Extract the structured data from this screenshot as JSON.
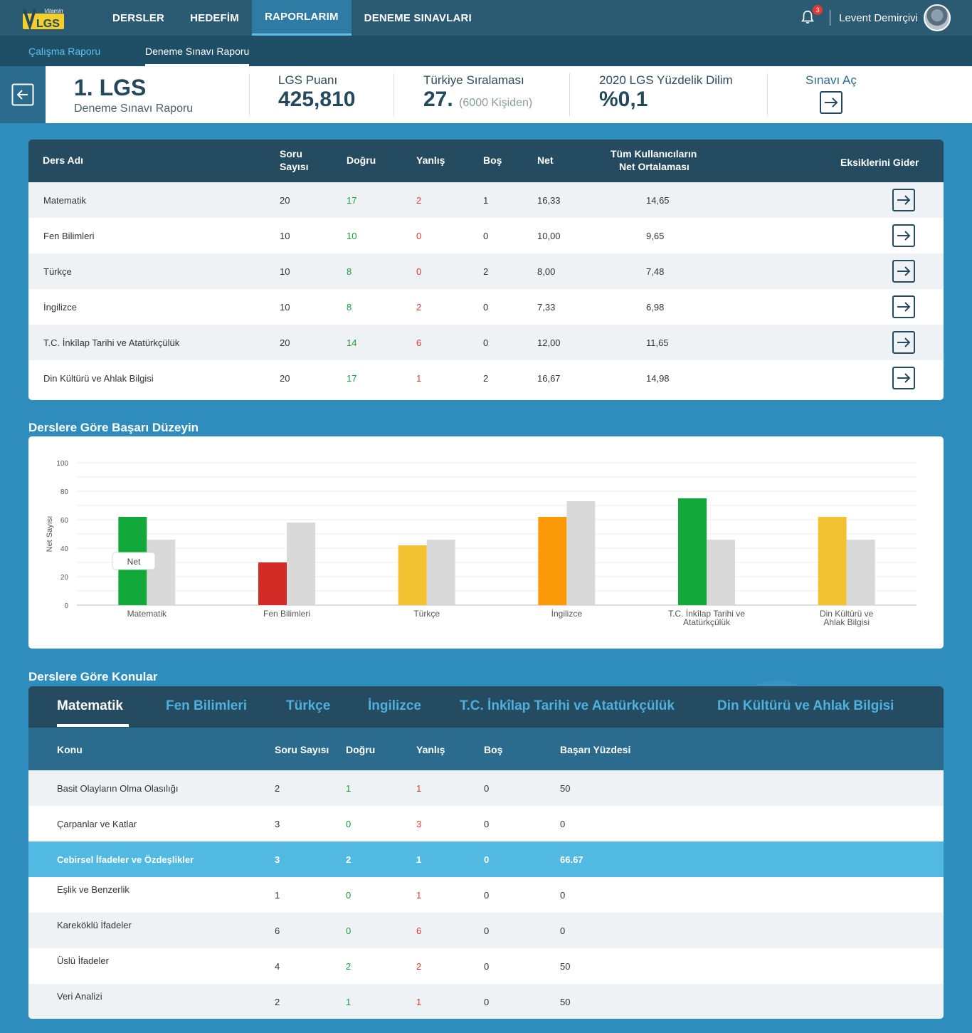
{
  "logo": {
    "top": "Vitamin",
    "main": "LGS"
  },
  "nav": {
    "items": [
      {
        "label": "DERSLER"
      },
      {
        "label": "HEDEFİM"
      },
      {
        "label": "RAPORLARIM"
      },
      {
        "label": "DENEME SINAVLARI"
      }
    ],
    "notifications": "3",
    "user_name": "Levent Demirçivi"
  },
  "subnav": {
    "inactive": "Çalışma Raporu",
    "active": "Deneme Sınavı Raporu"
  },
  "header": {
    "title": "1. LGS",
    "subtitle": "Deneme Sınavı Raporu",
    "score_label": "LGS Puanı",
    "score_value": "425,810",
    "rank_label": "Türkiye Sıralaması",
    "rank_value": "27.",
    "rank_note": "(6000 Kişiden)",
    "percentile_label": "2020 LGS Yüzdelik Dilim",
    "percentile_value": "%0,1",
    "open_exam_label": "Sınavı Aç"
  },
  "results_table": {
    "headers": {
      "subject": "Ders Adı",
      "question_count_1": "Soru",
      "question_count_2": "Sayısı",
      "correct": "Doğru",
      "wrong": "Yanlış",
      "empty": "Boş",
      "net": "Net",
      "average_1": "Tüm Kullanıcıların",
      "average_2": "Net Ortalaması",
      "fix": "Eksiklerini Gider"
    },
    "rows": [
      {
        "subject": "Matematik",
        "questions": "20",
        "correct": "17",
        "wrong": "2",
        "empty": "1",
        "net": "16,33",
        "avg": "14,65"
      },
      {
        "subject": "Fen Bilimleri",
        "questions": "10",
        "correct": "10",
        "wrong": "0",
        "empty": "0",
        "net": "10,00",
        "avg": "9,65"
      },
      {
        "subject": "Türkçe",
        "questions": "10",
        "correct": "8",
        "wrong": "0",
        "empty": "2",
        "net": "8,00",
        "avg": "7,48"
      },
      {
        "subject": "İngilizce",
        "questions": "10",
        "correct": "8",
        "wrong": "2",
        "empty": "0",
        "net": "7,33",
        "avg": "6,98"
      },
      {
        "subject": "T.C. İnkîlap Tarihi ve Atatürkçülük",
        "questions": "20",
        "correct": "14",
        "wrong": "6",
        "empty": "0",
        "net": "12,00",
        "avg": "11,65"
      },
      {
        "subject": "Din Kültürü ve Ahlak Bilgisi",
        "questions": "20",
        "correct": "17",
        "wrong": "1",
        "empty": "2",
        "net": "16,67",
        "avg": "14,98"
      }
    ]
  },
  "chart_section_title": "Derslere Göre Başarı Düzeyin",
  "chart_data": {
    "type": "bar",
    "title": "",
    "xlabel": "",
    "ylabel": "Net Sayısı",
    "ylim": [
      0,
      100
    ],
    "yticks": [
      "0",
      "20",
      "40",
      "60",
      "80",
      "100"
    ],
    "grid": true,
    "categories": [
      [
        "Matematik"
      ],
      [
        "Fen Bilimleri"
      ],
      [
        "Türkçe"
      ],
      [
        "İngilizce"
      ],
      [
        "T.C. İnkîlap Tarihi ve",
        "Atatürkçülük"
      ],
      [
        "Din Kültürü ve",
        "Ahlak Bilgisi"
      ]
    ],
    "series": [
      {
        "name": "Net",
        "values": [
          62,
          30,
          42,
          62,
          75,
          62
        ],
        "colors": [
          "#12a83a",
          "#d32b26",
          "#f2c233",
          "#fb9a08",
          "#12a83a",
          "#f2c233"
        ]
      },
      {
        "values": [
          46,
          58,
          46,
          73,
          46,
          46
        ],
        "color": "#d9d9d9"
      }
    ],
    "tooltip": "Net"
  },
  "topics_section_title": "Derslere Göre Konular",
  "topics": {
    "tabs": [
      "Matematik",
      "Fen Bilimleri",
      "Türkçe",
      "İngilizce",
      "T.C. İnkîlap Tarihi ve Atatürkçülük",
      "Din Kültürü ve Ahlak Bilgisi"
    ],
    "headers": {
      "topic": "Konu",
      "questions": "Soru Sayısı",
      "correct": "Doğru",
      "wrong": "Yanlış",
      "empty": "Boş",
      "success": "Başarı Yüzdesi"
    },
    "rows": [
      {
        "topic": "Basit Olayların Olma Olasılığı",
        "questions": "2",
        "correct": "1",
        "wrong": "1",
        "empty": "0",
        "success": "50"
      },
      {
        "topic": "Çarpanlar ve Katlar",
        "questions": "3",
        "correct": "0",
        "wrong": "3",
        "empty": "0",
        "success": "0"
      },
      {
        "topic": "Cebirsel İfadeler ve Özdeşlikler",
        "questions": "3",
        "correct": "2",
        "wrong": "1",
        "empty": "0",
        "success": "66.67"
      },
      {
        "topic": "Eşlik ve Benzerlik",
        "questions": "1",
        "correct": "0",
        "wrong": "1",
        "empty": "0",
        "success": "0"
      },
      {
        "topic": "Kareköklü İfadeler",
        "questions": "6",
        "correct": "0",
        "wrong": "6",
        "empty": "0",
        "success": "0"
      },
      {
        "topic": "Üslü İfadeler",
        "questions": "4",
        "correct": "2",
        "wrong": "2",
        "empty": "0",
        "success": "50"
      },
      {
        "topic": "Veri Analizi",
        "questions": "2",
        "correct": "1",
        "wrong": "1",
        "empty": "0",
        "success": "50"
      }
    ]
  }
}
